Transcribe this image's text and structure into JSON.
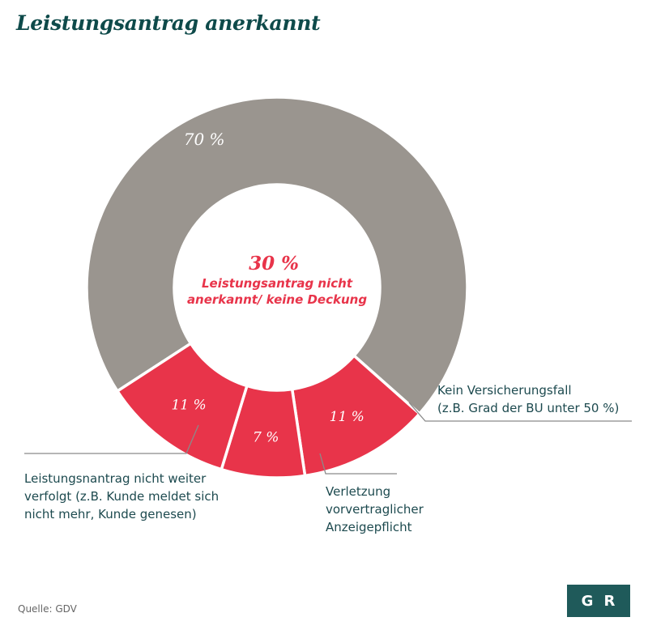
{
  "title": "Leistungsantrag anerkannt",
  "source": "Quelle: GDV",
  "logo": {
    "letter1": "G",
    "letter2": "R"
  },
  "colors": {
    "gray": "#9a958f",
    "red": "#e8344a",
    "text": "#1d4a4f"
  },
  "chart_data": {
    "type": "pie",
    "donut": true,
    "categories": [
      "Leistungsantrag anerkannt",
      "Kein Versicherungsfall",
      "Verletzung vorvertraglicher Anzeigepflicht",
      "Leistungsnantrag nicht weiter verfolgt"
    ],
    "values": [
      70,
      11,
      7,
      11
    ],
    "value_labels": [
      "70 %",
      "11 %",
      "7 %",
      "11 %"
    ],
    "center": {
      "value": "30 %",
      "line1": "Leistungsantrag nicht",
      "line2": "anerkannt/ keine Deckung"
    },
    "annotations": [
      {
        "lines": [
          "Kein Versicherungsfall",
          "(z.B. Grad der BU unter 50 %)"
        ]
      },
      {
        "lines": [
          "Verletzung",
          "vorvertraglicher",
          "Anzeigepflicht"
        ]
      },
      {
        "lines": [
          "Leistungsnantrag nicht weiter",
          "verfolgt (z.B. Kunde meldet sich",
          "nicht mehr, Kunde genesen)"
        ]
      }
    ]
  }
}
